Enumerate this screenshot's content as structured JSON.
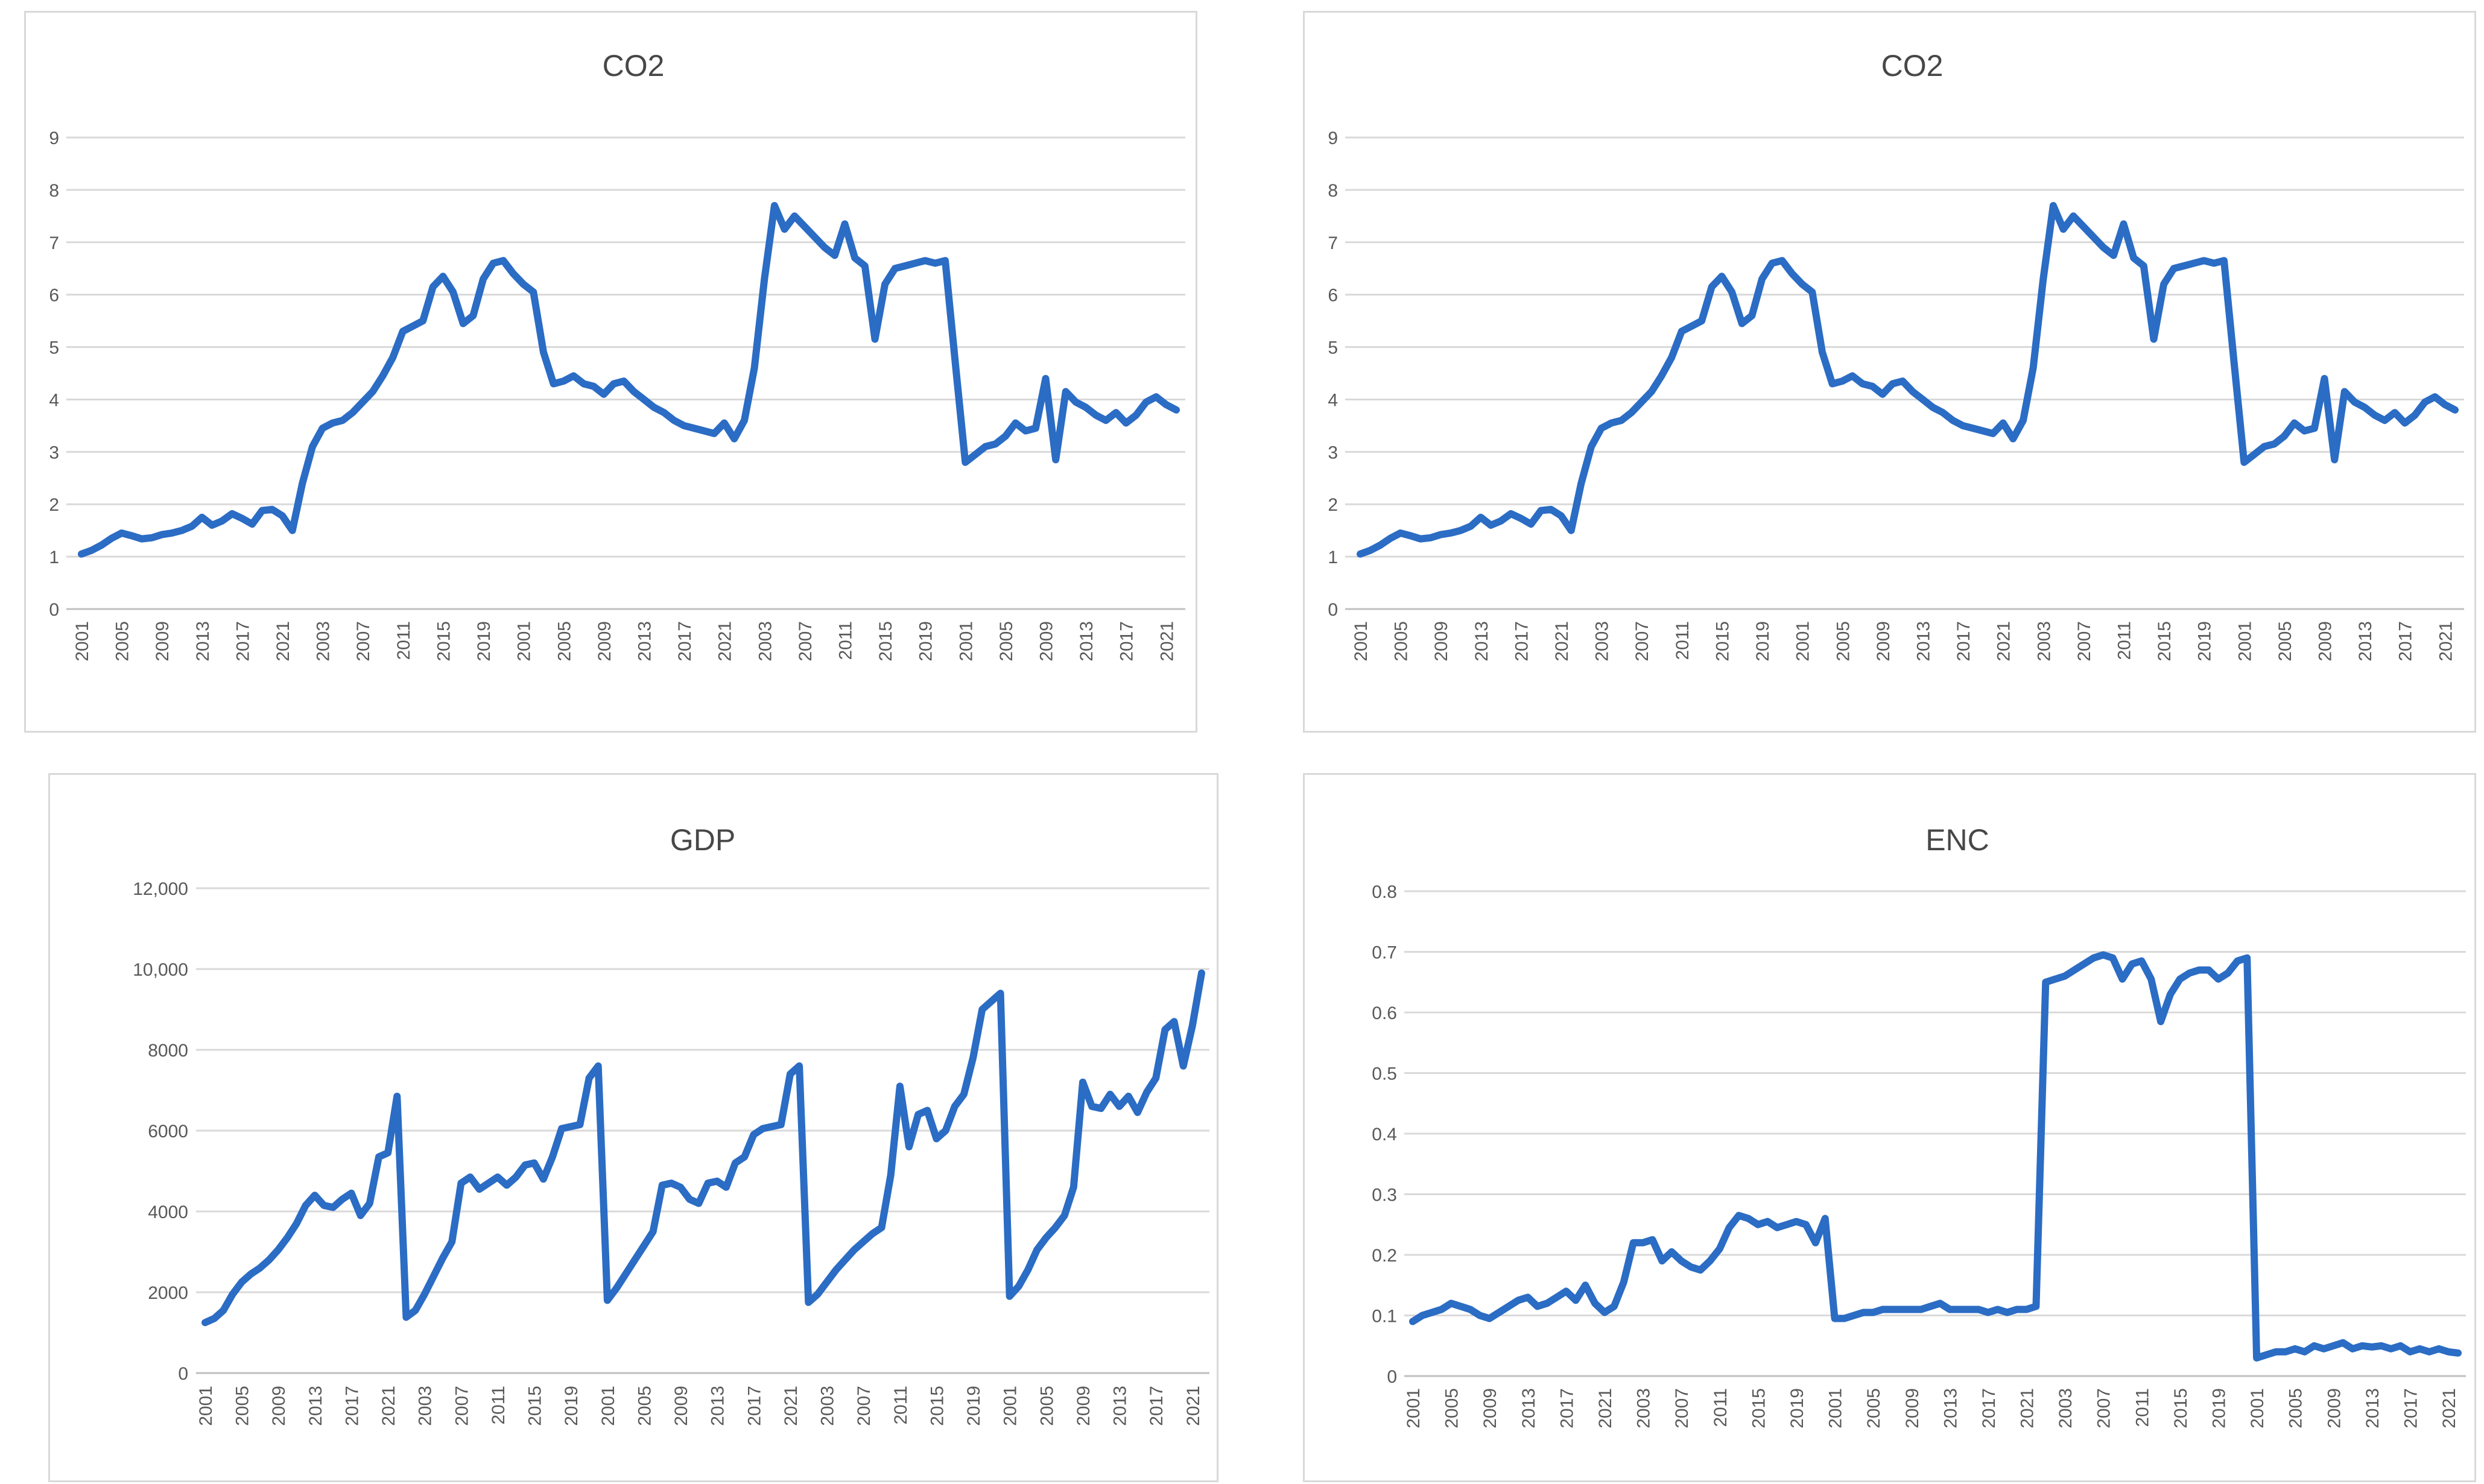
{
  "styles": {
    "page_background": "#ffffff",
    "line_color": "#2b6cc4",
    "gridline_color": "#d9d9d9",
    "axis_line_color": "#bfbfbf",
    "chart_border_color": "#d9d9d9",
    "chart_background": "#ffffff",
    "title_color": "#474747",
    "tick_label_color": "#595959"
  },
  "axis_years_ticks": [
    "2001",
    "2005",
    "2009",
    "2013",
    "2017",
    "2021",
    "2003",
    "2007",
    "2011",
    "2015",
    "2019",
    "2001",
    "2005",
    "2009",
    "2013",
    "2017",
    "2021",
    "2003",
    "2007",
    "2011",
    "2015",
    "2019",
    "2001",
    "2005",
    "2009",
    "2013",
    "2017",
    "2021"
  ],
  "charts": [
    {
      "key": "co2_left",
      "title": "CO2",
      "y_tick_labels": [
        "9",
        "8",
        "7",
        "6",
        "5",
        "4",
        "3",
        "2",
        "1",
        "0"
      ],
      "chart_data": {
        "type": "line",
        "title": "CO2",
        "ylim": [
          0,
          9
        ],
        "y_gridline_step": 1,
        "grid": true,
        "legend": false,
        "x_structure": "5 panels of years 2001-2022 concatenated",
        "x_tick_labels": [
          "2001",
          "2005",
          "2009",
          "2013",
          "2017",
          "2021",
          "2003",
          "2007",
          "2011",
          "2015",
          "2019",
          "2001",
          "2005",
          "2009",
          "2013",
          "2017",
          "2021",
          "2003",
          "2007",
          "2011",
          "2015",
          "2019",
          "2001",
          "2005",
          "2009",
          "2013",
          "2017",
          "2021"
        ],
        "values": [
          1.05,
          1.12,
          1.22,
          1.35,
          1.45,
          1.4,
          1.34,
          1.36,
          1.42,
          1.45,
          1.5,
          1.58,
          1.75,
          1.6,
          1.68,
          1.82,
          1.73,
          1.62,
          1.88,
          1.9,
          1.78,
          1.5,
          2.4,
          3.1,
          3.45,
          3.55,
          3.6,
          3.75,
          3.95,
          4.15,
          4.45,
          4.8,
          5.3,
          5.4,
          5.5,
          6.15,
          6.35,
          6.05,
          5.45,
          5.6,
          6.3,
          6.6,
          6.65,
          6.4,
          6.2,
          6.05,
          4.9,
          4.3,
          4.35,
          4.45,
          4.3,
          4.25,
          4.1,
          4.3,
          4.35,
          4.15,
          4.0,
          3.85,
          3.75,
          3.6,
          3.5,
          3.45,
          3.4,
          3.35,
          3.55,
          3.25,
          3.6,
          4.6,
          6.3,
          7.7,
          7.25,
          7.5,
          7.3,
          7.1,
          6.9,
          6.75,
          7.35,
          6.7,
          6.55,
          5.15,
          6.2,
          6.5,
          6.55,
          6.6,
          6.65,
          6.6,
          6.65,
          4.7,
          2.8,
          2.95,
          3.1,
          3.15,
          3.3,
          3.55,
          3.4,
          3.45,
          4.4,
          2.85,
          4.15,
          3.95,
          3.85,
          3.7,
          3.6,
          3.75,
          3.55,
          3.7,
          3.95,
          4.05,
          3.9,
          3.8
        ]
      }
    },
    {
      "key": "co2_right",
      "title": "CO2",
      "y_tick_labels": [
        "9",
        "8",
        "7",
        "6",
        "5",
        "4",
        "3",
        "2",
        "1",
        "0"
      ],
      "chart_data": {
        "type": "line",
        "title": "CO2",
        "ylim": [
          0,
          9
        ],
        "y_gridline_step": 1,
        "grid": true,
        "legend": false,
        "x_structure": "5 panels of years 2001-2022 concatenated",
        "x_tick_labels": [
          "2001",
          "2005",
          "2009",
          "2013",
          "2017",
          "2021",
          "2003",
          "2007",
          "2011",
          "2015",
          "2019",
          "2001",
          "2005",
          "2009",
          "2013",
          "2017",
          "2021",
          "2003",
          "2007",
          "2011",
          "2015",
          "2019",
          "2001",
          "2005",
          "2009",
          "2013",
          "2017",
          "2021"
        ],
        "values": [
          1.05,
          1.12,
          1.22,
          1.35,
          1.45,
          1.4,
          1.34,
          1.36,
          1.42,
          1.45,
          1.5,
          1.58,
          1.75,
          1.6,
          1.68,
          1.82,
          1.73,
          1.62,
          1.88,
          1.9,
          1.78,
          1.5,
          2.4,
          3.1,
          3.45,
          3.55,
          3.6,
          3.75,
          3.95,
          4.15,
          4.45,
          4.8,
          5.3,
          5.4,
          5.5,
          6.15,
          6.35,
          6.05,
          5.45,
          5.6,
          6.3,
          6.6,
          6.65,
          6.4,
          6.2,
          6.05,
          4.9,
          4.3,
          4.35,
          4.45,
          4.3,
          4.25,
          4.1,
          4.3,
          4.35,
          4.15,
          4.0,
          3.85,
          3.75,
          3.6,
          3.5,
          3.45,
          3.4,
          3.35,
          3.55,
          3.25,
          3.6,
          4.6,
          6.3,
          7.7,
          7.25,
          7.5,
          7.3,
          7.1,
          6.9,
          6.75,
          7.35,
          6.7,
          6.55,
          5.15,
          6.2,
          6.5,
          6.55,
          6.6,
          6.65,
          6.6,
          6.65,
          4.7,
          2.8,
          2.95,
          3.1,
          3.15,
          3.3,
          3.55,
          3.4,
          3.45,
          4.4,
          2.85,
          4.15,
          3.95,
          3.85,
          3.7,
          3.6,
          3.75,
          3.55,
          3.7,
          3.95,
          4.05,
          3.9,
          3.8
        ]
      }
    },
    {
      "key": "gdp",
      "title": "GDP",
      "y_tick_labels": [
        "12,000",
        "10,000",
        "8000",
        "6000",
        "4000",
        "2000",
        "0"
      ],
      "chart_data": {
        "type": "line",
        "title": "GDP",
        "ylim": [
          0,
          12000
        ],
        "y_gridline_step": 2000,
        "grid": true,
        "legend": false,
        "x_structure": "5 panels of years 2001-2022 concatenated",
        "x_tick_labels": [
          "2001",
          "2005",
          "2009",
          "2013",
          "2017",
          "2021",
          "2003",
          "2007",
          "2011",
          "2015",
          "2019",
          "2001",
          "2005",
          "2009",
          "2013",
          "2017",
          "2021",
          "2003",
          "2007",
          "2011",
          "2015",
          "2019",
          "2001",
          "2005",
          "2009",
          "2013",
          "2017",
          "2021"
        ],
        "values": [
          1250,
          1350,
          1550,
          1950,
          2250,
          2450,
          2600,
          2800,
          3050,
          3350,
          3700,
          4150,
          4400,
          4150,
          4100,
          4300,
          4450,
          3900,
          4200,
          5350,
          5450,
          6850,
          1380,
          1550,
          1950,
          2400,
          2850,
          3250,
          4700,
          4850,
          4550,
          4700,
          4850,
          4650,
          4850,
          5150,
          5200,
          4800,
          5350,
          6050,
          6100,
          6150,
          7300,
          7600,
          1800,
          2100,
          2450,
          2800,
          3150,
          3500,
          4650,
          4700,
          4600,
          4300,
          4200,
          4700,
          4750,
          4600,
          5200,
          5350,
          5900,
          6050,
          6100,
          6150,
          7400,
          7600,
          1750,
          1950,
          2250,
          2550,
          2800,
          3050,
          3250,
          3450,
          3600,
          4900,
          7100,
          5600,
          6400,
          6500,
          5800,
          6000,
          6600,
          6900,
          7800,
          9000,
          9200,
          9400,
          1900,
          2150,
          2550,
          3050,
          3350,
          3600,
          3900,
          4600,
          7200,
          6600,
          6550,
          6900,
          6600,
          6850,
          6450,
          6950,
          7300,
          8500,
          8700,
          7600,
          8600,
          9900
        ]
      }
    },
    {
      "key": "enc",
      "title": "ENC",
      "y_tick_labels": [
        "0.8",
        "0.7",
        "0.6",
        "0.5",
        "0.4",
        "0.3",
        "0.2",
        "0.1",
        "0"
      ],
      "chart_data": {
        "type": "line",
        "title": "ENC",
        "ylim": [
          0,
          0.8
        ],
        "y_gridline_step": 0.1,
        "grid": true,
        "legend": false,
        "x_structure": "5 panels of years 2001-2022 concatenated",
        "x_tick_labels": [
          "2001",
          "2005",
          "2009",
          "2013",
          "2017",
          "2021",
          "2003",
          "2007",
          "2011",
          "2015",
          "2019",
          "2001",
          "2005",
          "2009",
          "2013",
          "2017",
          "2021",
          "2003",
          "2007",
          "2011",
          "2015",
          "2019",
          "2001",
          "2005",
          "2009",
          "2013",
          "2017",
          "2021"
        ],
        "values": [
          0.09,
          0.1,
          0.105,
          0.11,
          0.12,
          0.115,
          0.11,
          0.1,
          0.095,
          0.105,
          0.115,
          0.125,
          0.13,
          0.115,
          0.12,
          0.13,
          0.14,
          0.125,
          0.15,
          0.12,
          0.105,
          0.115,
          0.155,
          0.22,
          0.22,
          0.225,
          0.19,
          0.205,
          0.19,
          0.18,
          0.175,
          0.19,
          0.21,
          0.245,
          0.265,
          0.26,
          0.25,
          0.255,
          0.245,
          0.25,
          0.255,
          0.25,
          0.22,
          0.26,
          0.095,
          0.095,
          0.1,
          0.105,
          0.105,
          0.11,
          0.11,
          0.11,
          0.11,
          0.11,
          0.115,
          0.12,
          0.11,
          0.11,
          0.11,
          0.11,
          0.105,
          0.11,
          0.105,
          0.11,
          0.11,
          0.115,
          0.65,
          0.655,
          0.66,
          0.67,
          0.68,
          0.69,
          0.695,
          0.69,
          0.655,
          0.68,
          0.685,
          0.655,
          0.585,
          0.63,
          0.655,
          0.665,
          0.67,
          0.67,
          0.655,
          0.665,
          0.685,
          0.69,
          0.03,
          0.035,
          0.04,
          0.04,
          0.045,
          0.04,
          0.05,
          0.045,
          0.05,
          0.055,
          0.045,
          0.05,
          0.048,
          0.05,
          0.045,
          0.05,
          0.04,
          0.045,
          0.04,
          0.045,
          0.04,
          0.038
        ]
      }
    }
  ]
}
